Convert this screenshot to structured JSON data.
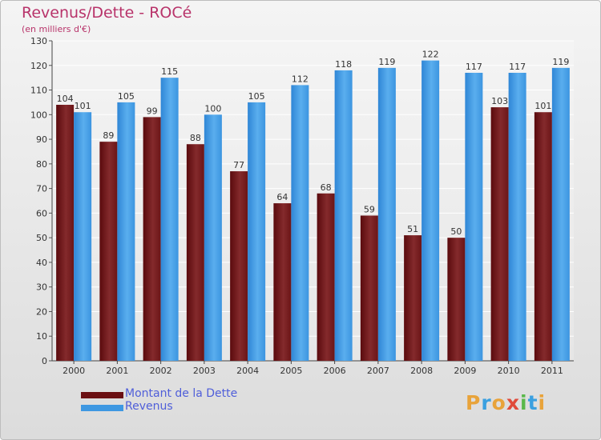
{
  "colors": {
    "debt": "#7a1c1c",
    "revenue": "#3e98e2",
    "title": "#b8336a",
    "legend_text": "#4f5ed9"
  },
  "legend": [
    {
      "label": "Montant de la Dette",
      "color": "#6b0f12"
    },
    {
      "label": "Revenus",
      "color": "#3e98e2"
    }
  ],
  "logo": {
    "letters": [
      "P",
      "r",
      "o",
      "x",
      "i",
      "t",
      "i"
    ],
    "colors": [
      "#e8a33a",
      "#3aa0e0",
      "#e8a33a",
      "#e04a3a",
      "#5ab84a",
      "#3aa0e0",
      "#e8a33a"
    ],
    "alt": "Proxiti"
  },
  "chart_data": {
    "type": "bar",
    "title": "Revenus/Dette - ROCé",
    "subtitle": "(en milliers d'€)",
    "categories": [
      "2000",
      "2001",
      "2002",
      "2003",
      "2004",
      "2005",
      "2006",
      "2007",
      "2008",
      "2009",
      "2010",
      "2011"
    ],
    "series": [
      {
        "name": "Montant de la Dette",
        "values": [
          104,
          89,
          99,
          88,
          77,
          64,
          68,
          59,
          51,
          50,
          103,
          101
        ]
      },
      {
        "name": "Revenus",
        "values": [
          101,
          105,
          115,
          100,
          105,
          112,
          118,
          119,
          122,
          117,
          117,
          119
        ]
      }
    ],
    "ylim": [
      0,
      130
    ],
    "yticks": [
      0,
      10,
      20,
      30,
      40,
      50,
      60,
      70,
      80,
      90,
      100,
      110,
      120,
      130
    ],
    "grid": true,
    "legend_position": "bottom-left"
  }
}
